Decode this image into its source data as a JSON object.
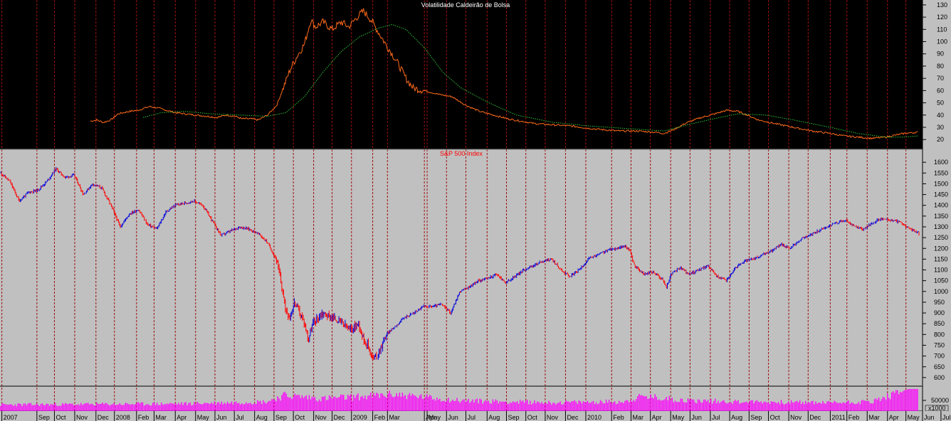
{
  "chart_data": [
    {
      "type": "line",
      "title": "Volatilidade Caldeirão de Bolsa",
      "yticks": [
        20,
        30,
        40,
        50,
        60,
        70,
        80,
        90,
        100,
        110,
        120,
        130
      ],
      "ylim": [
        12,
        134
      ],
      "background": "#000000",
      "grid": "vertical dashed",
      "series": [
        {
          "color": "#ff6a1a",
          "points": [
            [
              0.098,
              35
            ],
            [
              0.105,
              36
            ],
            [
              0.112,
              34
            ],
            [
              0.12,
              36
            ],
            [
              0.128,
              41
            ],
            [
              0.14,
              43
            ],
            [
              0.15,
              44
            ],
            [
              0.162,
              47
            ],
            [
              0.17,
              46
            ],
            [
              0.18,
              44
            ],
            [
              0.19,
              42
            ],
            [
              0.2,
              41
            ],
            [
              0.212,
              40
            ],
            [
              0.225,
              39
            ],
            [
              0.235,
              38
            ],
            [
              0.245,
              40
            ],
            [
              0.255,
              39
            ],
            [
              0.262,
              37
            ],
            [
              0.272,
              37
            ],
            [
              0.28,
              36
            ],
            [
              0.29,
              40
            ],
            [
              0.3,
              48
            ],
            [
              0.307,
              62
            ],
            [
              0.315,
              78
            ],
            [
              0.322,
              88
            ],
            [
              0.33,
              98
            ],
            [
              0.337,
              118
            ],
            [
              0.342,
              112
            ],
            [
              0.35,
              116
            ],
            [
              0.36,
              110
            ],
            [
              0.37,
              116
            ],
            [
              0.378,
              112
            ],
            [
              0.387,
              120
            ],
            [
              0.394,
              125
            ],
            [
              0.402,
              118
            ],
            [
              0.41,
              108
            ],
            [
              0.418,
              98
            ],
            [
              0.425,
              90
            ],
            [
              0.433,
              80
            ],
            [
              0.44,
              70
            ],
            [
              0.448,
              62
            ],
            [
              0.46,
              60
            ],
            [
              0.475,
              57
            ],
            [
              0.49,
              55
            ],
            [
              0.505,
              48
            ],
            [
              0.52,
              43
            ],
            [
              0.535,
              40
            ],
            [
              0.55,
              37
            ],
            [
              0.565,
              35
            ],
            [
              0.58,
              33
            ],
            [
              0.6,
              32
            ],
            [
              0.62,
              31
            ],
            [
              0.64,
              29
            ],
            [
              0.655,
              28
            ],
            [
              0.67,
              27
            ],
            [
              0.69,
              27
            ],
            [
              0.71,
              26
            ],
            [
              0.72,
              25
            ],
            [
              0.73,
              28
            ],
            [
              0.745,
              34
            ],
            [
              0.76,
              38
            ],
            [
              0.775,
              41
            ],
            [
              0.788,
              44
            ],
            [
              0.8,
              43
            ],
            [
              0.81,
              40
            ],
            [
              0.822,
              36
            ],
            [
              0.84,
              33
            ],
            [
              0.86,
              30
            ],
            [
              0.88,
              27
            ],
            [
              0.9,
              25
            ],
            [
              0.915,
              23
            ],
            [
              0.93,
              22
            ],
            [
              0.945,
              21
            ],
            [
              0.96,
              22
            ],
            [
              0.98,
              25
            ],
            [
              0.995,
              26
            ]
          ]
        },
        {
          "color": "#2ec43a",
          "points": [
            [
              0.155,
              38
            ],
            [
              0.175,
              42
            ],
            [
              0.2,
              43
            ],
            [
              0.23,
              41
            ],
            [
              0.26,
              40
            ],
            [
              0.29,
              39
            ],
            [
              0.31,
              42
            ],
            [
              0.33,
              55
            ],
            [
              0.35,
              75
            ],
            [
              0.37,
              92
            ],
            [
              0.39,
              104
            ],
            [
              0.41,
              111
            ],
            [
              0.425,
              114
            ],
            [
              0.44,
              110
            ],
            [
              0.46,
              95
            ],
            [
              0.48,
              75
            ],
            [
              0.5,
              62
            ],
            [
              0.53,
              50
            ],
            [
              0.56,
              40
            ],
            [
              0.6,
              34
            ],
            [
              0.64,
              31
            ],
            [
              0.68,
              29
            ],
            [
              0.72,
              27
            ],
            [
              0.75,
              33
            ],
            [
              0.78,
              38
            ],
            [
              0.8,
              41
            ],
            [
              0.83,
              40
            ],
            [
              0.86,
              36
            ],
            [
              0.9,
              30
            ],
            [
              0.93,
              25
            ],
            [
              0.96,
              22
            ],
            [
              0.98,
              22
            ],
            [
              0.995,
              23
            ]
          ]
        }
      ]
    },
    {
      "type": "bar",
      "subtype": "ohlc",
      "title": "S&P 500 Index",
      "yticks": [
        600,
        650,
        700,
        750,
        800,
        850,
        900,
        950,
        1000,
        1050,
        1100,
        1150,
        1200,
        1250,
        1300,
        1350,
        1400,
        1450,
        1500,
        1550,
        1600
      ],
      "ylim": [
        560,
        1660
      ],
      "up_color": "#0000dd",
      "down_color": "#ff0000",
      "price_path": [
        [
          0,
          1550
        ],
        [
          0.01,
          1510
        ],
        [
          0.02,
          1420
        ],
        [
          0.03,
          1460
        ],
        [
          0.04,
          1470
        ],
        [
          0.05,
          1510
        ],
        [
          0.06,
          1570
        ],
        [
          0.07,
          1530
        ],
        [
          0.08,
          1540
        ],
        [
          0.09,
          1450
        ],
        [
          0.1,
          1500
        ],
        [
          0.11,
          1480
        ],
        [
          0.12,
          1400
        ],
        [
          0.13,
          1300
        ],
        [
          0.14,
          1360
        ],
        [
          0.15,
          1380
        ],
        [
          0.16,
          1310
        ],
        [
          0.17,
          1290
        ],
        [
          0.18,
          1370
        ],
        [
          0.19,
          1400
        ],
        [
          0.2,
          1410
        ],
        [
          0.21,
          1420
        ],
        [
          0.22,
          1400
        ],
        [
          0.23,
          1330
        ],
        [
          0.24,
          1260
        ],
        [
          0.25,
          1280
        ],
        [
          0.26,
          1300
        ],
        [
          0.27,
          1290
        ],
        [
          0.28,
          1270
        ],
        [
          0.29,
          1230
        ],
        [
          0.3,
          1150
        ],
        [
          0.305,
          1050
        ],
        [
          0.31,
          920
        ],
        [
          0.315,
          880
        ],
        [
          0.32,
          950
        ],
        [
          0.33,
          860
        ],
        [
          0.335,
          780
        ],
        [
          0.34,
          850
        ],
        [
          0.35,
          900
        ],
        [
          0.36,
          880
        ],
        [
          0.37,
          860
        ],
        [
          0.38,
          820
        ],
        [
          0.39,
          850
        ],
        [
          0.395,
          780
        ],
        [
          0.4,
          750
        ],
        [
          0.405,
          690
        ],
        [
          0.41,
          700
        ],
        [
          0.42,
          800
        ],
        [
          0.43,
          840
        ],
        [
          0.44,
          880
        ],
        [
          0.45,
          900
        ],
        [
          0.46,
          930
        ],
        [
          0.47,
          930
        ],
        [
          0.48,
          940
        ],
        [
          0.49,
          900
        ],
        [
          0.5,
          1000
        ],
        [
          0.51,
          1020
        ],
        [
          0.52,
          1050
        ],
        [
          0.53,
          1060
        ],
        [
          0.54,
          1080
        ],
        [
          0.55,
          1040
        ],
        [
          0.56,
          1070
        ],
        [
          0.57,
          1100
        ],
        [
          0.58,
          1120
        ],
        [
          0.59,
          1140
        ],
        [
          0.6,
          1150
        ],
        [
          0.61,
          1100
        ],
        [
          0.62,
          1070
        ],
        [
          0.63,
          1100
        ],
        [
          0.64,
          1150
        ],
        [
          0.65,
          1170
        ],
        [
          0.66,
          1190
        ],
        [
          0.67,
          1200
        ],
        [
          0.68,
          1210
        ],
        [
          0.685,
          1190
        ],
        [
          0.69,
          1120
        ],
        [
          0.7,
          1080
        ],
        [
          0.71,
          1090
        ],
        [
          0.72,
          1060
        ],
        [
          0.725,
          1020
        ],
        [
          0.73,
          1080
        ],
        [
          0.74,
          1110
        ],
        [
          0.75,
          1080
        ],
        [
          0.76,
          1100
        ],
        [
          0.77,
          1120
        ],
        [
          0.78,
          1070
        ],
        [
          0.79,
          1050
        ],
        [
          0.8,
          1110
        ],
        [
          0.81,
          1140
        ],
        [
          0.82,
          1150
        ],
        [
          0.83,
          1170
        ],
        [
          0.84,
          1190
        ],
        [
          0.85,
          1220
        ],
        [
          0.86,
          1200
        ],
        [
          0.87,
          1240
        ],
        [
          0.88,
          1260
        ],
        [
          0.89,
          1280
        ],
        [
          0.9,
          1300
        ],
        [
          0.91,
          1320
        ],
        [
          0.92,
          1330
        ],
        [
          0.93,
          1300
        ],
        [
          0.94,
          1290
        ],
        [
          0.95,
          1320
        ],
        [
          0.96,
          1340
        ],
        [
          0.97,
          1330
        ],
        [
          0.98,
          1320
        ],
        [
          0.99,
          1290
        ],
        [
          1.0,
          1270
        ]
      ]
    },
    {
      "type": "bar",
      "title": "",
      "yticks": [
        "50000"
      ],
      "unit": "x1000",
      "color": "#ff00ff",
      "profile": [
        [
          0,
          0.3
        ],
        [
          0.2,
          0.35
        ],
        [
          0.29,
          0.45
        ],
        [
          0.31,
          0.75
        ],
        [
          0.35,
          0.6
        ],
        [
          0.4,
          0.7
        ],
        [
          0.43,
          0.8
        ],
        [
          0.5,
          0.5
        ],
        [
          0.6,
          0.4
        ],
        [
          0.68,
          0.45
        ],
        [
          0.7,
          0.7
        ],
        [
          0.75,
          0.5
        ],
        [
          0.8,
          0.45
        ],
        [
          0.9,
          0.4
        ],
        [
          0.95,
          0.45
        ],
        [
          0.99,
          1.0
        ]
      ]
    }
  ],
  "x_axis": {
    "labels": [
      "2007",
      "Sep",
      "Oct",
      "Nov",
      "Dec",
      "2008",
      "Feb",
      "Mar",
      "Apr",
      "May",
      "Jun",
      "Jul",
      "Aug",
      "Sep",
      "Oct",
      "Nov",
      "Dec",
      "2009",
      "Feb",
      "Mar",
      "Apr",
      "May",
      "Jun",
      "Jul",
      "Aug",
      "Sep",
      "Oct",
      "Nov",
      "Dec",
      "2010",
      "Feb",
      "Mar",
      "Apr",
      "May",
      "Jun",
      "Jul",
      "Aug",
      "Sep",
      "Oct",
      "Nov",
      "Dec",
      "2011",
      "Feb",
      "Mar",
      "Apr",
      "May",
      "Jun",
      "Jul"
    ],
    "positions": [
      0.002,
      0.04,
      0.059,
      0.081,
      0.104,
      0.124,
      0.148,
      0.167,
      0.19,
      0.212,
      0.233,
      0.254,
      0.276,
      0.297,
      0.318,
      0.34,
      0.36,
      0.381,
      0.404,
      0.42,
      0.46,
      0.463,
      0.484,
      0.505,
      0.528,
      0.549,
      0.57,
      0.591,
      0.613,
      0.635,
      0.663,
      0.684,
      0.705,
      0.727,
      0.748,
      0.77,
      0.791,
      0.812,
      0.833,
      0.855,
      0.876,
      0.9,
      0.918,
      0.94,
      0.962,
      0.982,
      1.0,
      1.02
    ]
  }
}
